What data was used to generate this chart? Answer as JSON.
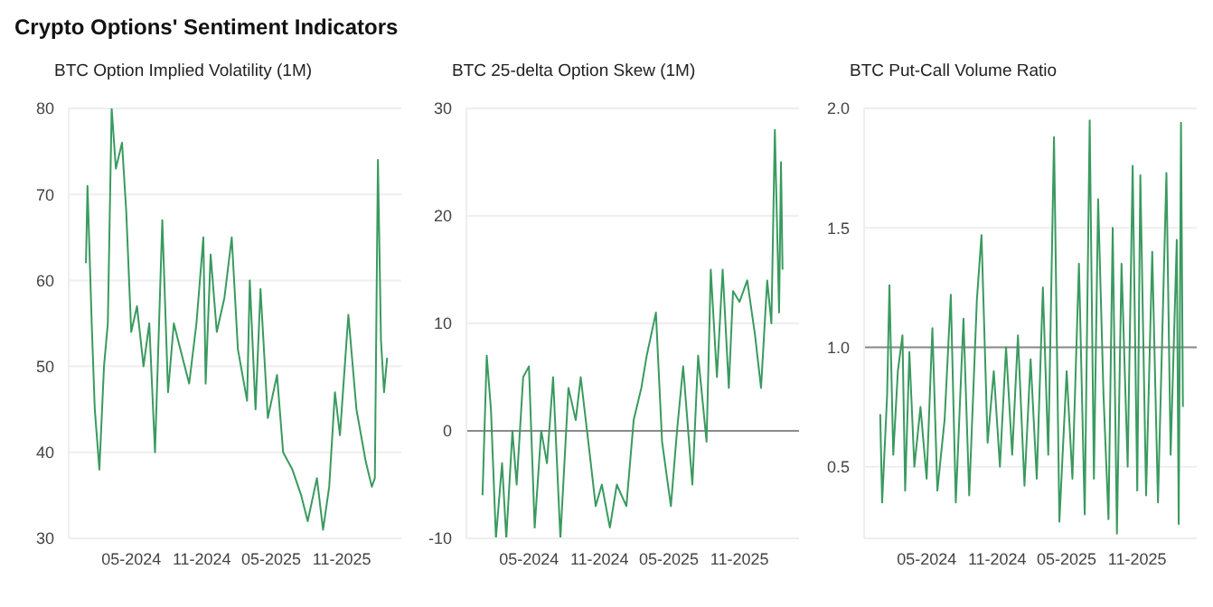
{
  "chart_data": [
    {
      "type": "line",
      "title": "BTC Option Implied Volatility (1M)",
      "annotations": [
        "Crypto Options' Sentiment Indicators"
      ],
      "x": [
        "2024-01-04",
        "2024-01-08",
        "2024-01-19",
        "2024-01-27",
        "2024-02-08",
        "2024-02-20",
        "2024-03-01",
        "2024-03-11",
        "2024-03-22",
        "2024-04-07",
        "2024-04-18",
        "2024-05-01",
        "2024-05-16",
        "2024-06-02",
        "2024-06-17",
        "2024-07-02",
        "2024-07-21",
        "2024-08-05",
        "2024-08-20",
        "2024-09-06",
        "2024-09-29",
        "2024-10-18",
        "2024-11-05",
        "2024-11-11",
        "2024-11-24",
        "2024-12-10",
        "2024-12-30",
        "2025-01-18",
        "2025-02-03",
        "2025-02-27",
        "2025-03-06",
        "2025-03-21",
        "2025-04-03",
        "2025-04-22",
        "2025-05-16",
        "2025-06-01",
        "2025-06-25",
        "2025-07-18",
        "2025-08-04",
        "2025-08-28",
        "2025-09-13",
        "2025-09-29",
        "2025-10-14",
        "2025-10-27",
        "2025-11-18",
        "2025-12-09",
        "2026-01-02",
        "2026-01-18",
        "2026-01-26",
        "2026-02-03",
        "2026-02-11",
        "2026-02-19",
        "2026-02-27"
      ],
      "series": [
        {
          "color": "#3a9a5f",
          "values": [
            62,
            71,
            55,
            45,
            38,
            50,
            55,
            80,
            73,
            76,
            68,
            54,
            57,
            50,
            55,
            40,
            67,
            47,
            55,
            52,
            48,
            55,
            65,
            48,
            63,
            54,
            58,
            65,
            52,
            46,
            60,
            45,
            59,
            44,
            49,
            40,
            38,
            35,
            32,
            37,
            31,
            36,
            47,
            42,
            56,
            45,
            39,
            36,
            37,
            74,
            53,
            47,
            51
          ]
        }
      ],
      "xlim": [
        "2023-11-20",
        "2026-04-05"
      ],
      "xticks": [
        {
          "value": "2024-05-01",
          "label": "05-2024"
        },
        {
          "value": "2024-11-01",
          "label": "11-2024"
        },
        {
          "value": "2025-05-01",
          "label": "05-2025"
        },
        {
          "value": "2025-11-01",
          "label": "11-2025"
        }
      ],
      "ylim": [
        30,
        80
      ],
      "yticks": [
        30,
        40,
        50,
        60,
        70,
        80
      ],
      "grid": "y"
    },
    {
      "type": "line",
      "title": "BTC 25-delta Option Skew (1M)",
      "x": [
        "2024-01-01",
        "2024-01-12",
        "2024-01-23",
        "2024-02-05",
        "2024-02-21",
        "2024-03-03",
        "2024-03-19",
        "2024-03-30",
        "2024-04-16",
        "2024-05-01",
        "2024-05-16",
        "2024-06-02",
        "2024-06-17",
        "2024-07-03",
        "2024-07-22",
        "2024-08-12",
        "2024-08-31",
        "2024-09-13",
        "2024-10-06",
        "2024-10-22",
        "2024-11-07",
        "2024-11-28",
        "2024-12-16",
        "2025-01-10",
        "2025-01-29",
        "2025-02-18",
        "2025-03-04",
        "2025-03-28",
        "2025-04-13",
        "2025-05-06",
        "2025-05-22",
        "2025-06-07",
        "2025-07-01",
        "2025-07-16",
        "2025-08-07",
        "2025-08-18",
        "2025-09-03",
        "2025-09-18",
        "2025-10-04",
        "2025-10-15",
        "2025-11-01",
        "2025-11-21",
        "2025-12-11",
        "2025-12-27",
        "2026-01-12",
        "2026-01-23",
        "2026-02-01",
        "2026-02-12",
        "2026-02-17",
        "2026-02-21"
      ],
      "series": [
        {
          "color": "#3a9a5f",
          "values": [
            -6,
            7,
            2,
            -10,
            -3,
            -10,
            0,
            -5,
            5,
            6,
            -9,
            0,
            -3,
            5,
            -10,
            4,
            1,
            5,
            -2,
            -7,
            -5,
            -9,
            -5,
            -7,
            1,
            4,
            7,
            11,
            -1,
            -7,
            0,
            6,
            -5,
            7,
            -1,
            15,
            5,
            15,
            4,
            13,
            12,
            14,
            9,
            4,
            14,
            10,
            28,
            11,
            25,
            15
          ]
        }
      ],
      "xlim": [
        "2023-11-20",
        "2026-04-05"
      ],
      "xticks": [
        {
          "value": "2024-05-01",
          "label": "05-2024"
        },
        {
          "value": "2024-11-01",
          "label": "11-2024"
        },
        {
          "value": "2025-05-01",
          "label": "05-2025"
        },
        {
          "value": "2025-11-01",
          "label": "11-2025"
        }
      ],
      "ylim": [
        -10,
        30
      ],
      "yticks": [
        -10,
        0,
        10,
        20,
        30
      ],
      "grid": "y",
      "ref_lines": [
        {
          "axis": "y",
          "value": 0,
          "color": "#8a8a8a"
        }
      ]
    },
    {
      "type": "line",
      "title": "BTC Put-Call Volume Ratio",
      "x": [
        "2024-01-01",
        "2024-01-06",
        "2024-01-19",
        "2024-01-25",
        "2024-02-04",
        "2024-02-16",
        "2024-02-28",
        "2024-03-06",
        "2024-03-17",
        "2024-03-30",
        "2024-04-15",
        "2024-05-01",
        "2024-05-16",
        "2024-05-29",
        "2024-06-17",
        "2024-07-03",
        "2024-07-16",
        "2024-08-05",
        "2024-08-20",
        "2024-09-09",
        "2024-09-21",
        "2024-10-07",
        "2024-10-23",
        "2024-11-08",
        "2024-11-24",
        "2024-12-10",
        "2024-12-25",
        "2025-01-11",
        "2025-01-27",
        "2025-02-12",
        "2025-02-28",
        "2025-03-14",
        "2025-03-29",
        "2025-04-12",
        "2025-05-01",
        "2025-05-16",
        "2025-06-02",
        "2025-06-17",
        "2025-06-30",
        "2025-07-11",
        "2025-07-22",
        "2025-08-05",
        "2025-08-18",
        "2025-08-29",
        "2025-09-09",
        "2025-09-21",
        "2025-10-07",
        "2025-10-20",
        "2025-11-01",
        "2025-11-09",
        "2025-11-24",
        "2025-12-10",
        "2025-12-25",
        "2026-01-16",
        "2026-01-27",
        "2026-02-12",
        "2026-02-17",
        "2026-02-23",
        "2026-02-28"
      ],
      "series": [
        {
          "color": "#3a9a5f",
          "values": [
            0.72,
            0.35,
            0.8,
            1.26,
            0.55,
            0.9,
            1.05,
            0.4,
            0.98,
            0.5,
            0.75,
            0.45,
            1.08,
            0.4,
            0.7,
            1.22,
            0.35,
            1.12,
            0.38,
            1.2,
            1.47,
            0.6,
            0.9,
            0.5,
            1.0,
            0.55,
            1.05,
            0.42,
            0.95,
            0.45,
            1.25,
            0.55,
            1.88,
            0.27,
            0.9,
            0.45,
            1.35,
            0.3,
            1.95,
            0.45,
            1.62,
            0.8,
            0.28,
            1.5,
            0.22,
            1.35,
            0.5,
            1.76,
            0.4,
            1.72,
            0.38,
            1.4,
            0.35,
            1.73,
            0.55,
            1.45,
            0.26,
            1.94,
            0.75
          ]
        }
      ],
      "xlim": [
        "2023-11-20",
        "2026-04-05"
      ],
      "xticks": [
        {
          "value": "2024-05-01",
          "label": "05-2024"
        },
        {
          "value": "2024-11-01",
          "label": "11-2024"
        },
        {
          "value": "2025-05-01",
          "label": "05-2025"
        },
        {
          "value": "2025-11-01",
          "label": "11-2025"
        }
      ],
      "ylim": [
        0.2,
        2.0
      ],
      "yticks": [
        0.5,
        {
          "value": 1,
          "label": "1.0"
        },
        1.5,
        {
          "value": 2,
          "label": "2.0"
        }
      ],
      "grid": "y",
      "ref_lines": [
        {
          "axis": "y",
          "value": 1,
          "color": "#8a8a8a"
        }
      ]
    }
  ]
}
